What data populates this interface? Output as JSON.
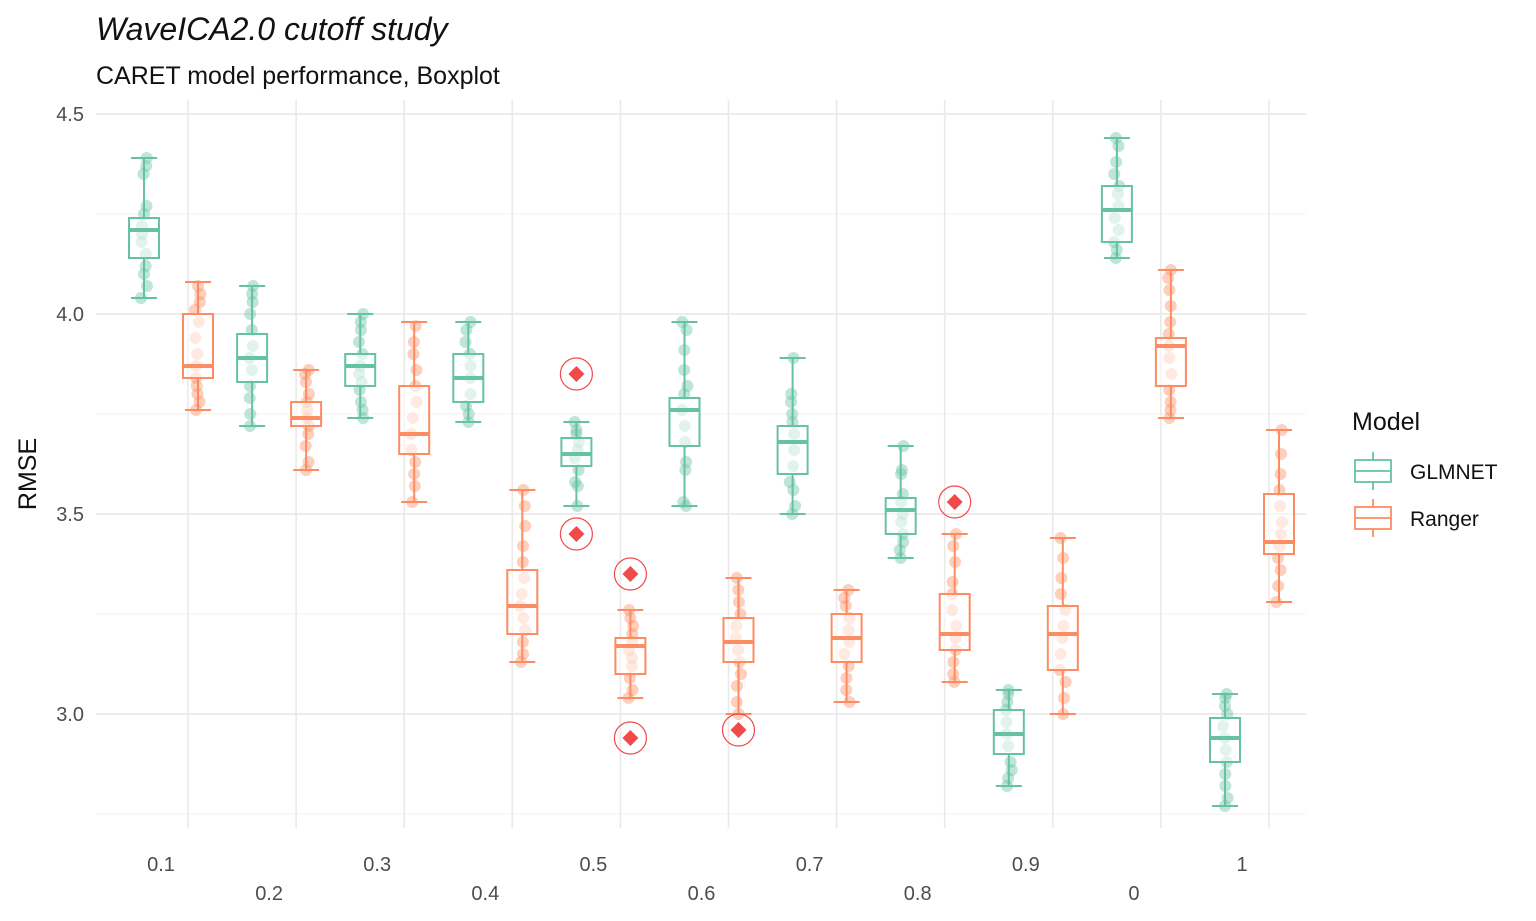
{
  "chart_data": {
    "type": "box",
    "title": "WaveICA2.0 cutoff study",
    "subtitle": "CARET model performance, Boxplot",
    "ylabel": "RMSE",
    "xlabel": "",
    "ylim": [
      2.75,
      4.5
    ],
    "yticks": [
      3.0,
      3.5,
      4.0,
      4.5
    ],
    "grid": true,
    "legend": {
      "title": "Model",
      "position": "right",
      "entries": [
        "GLMNET",
        "Ranger"
      ]
    },
    "categories": [
      "0.1",
      "0.2",
      "0.3",
      "0.4",
      "0.5",
      "0.6",
      "0.7",
      "0.8",
      "0.9",
      "0",
      "1"
    ],
    "colors": {
      "GLMNET": "#66c2a5",
      "Ranger": "#fc8d62",
      "highlight": "#f04a4a"
    },
    "series": [
      {
        "name": "GLMNET",
        "boxes": [
          {
            "category": "0.1",
            "min": 4.04,
            "q1": 4.14,
            "median": 4.21,
            "q3": 4.24,
            "max": 4.39,
            "points": [
              4.04,
              4.07,
              4.1,
              4.12,
              4.15,
              4.18,
              4.2,
              4.22,
              4.25,
              4.27,
              4.35,
              4.37,
              4.39
            ]
          },
          {
            "category": "0.2",
            "min": 3.72,
            "q1": 3.83,
            "median": 3.89,
            "q3": 3.95,
            "max": 4.07,
            "points": [
              3.72,
              3.75,
              3.79,
              3.82,
              3.86,
              3.89,
              3.92,
              3.96,
              4.0,
              4.03,
              4.05,
              4.07
            ]
          },
          {
            "category": "0.3",
            "min": 3.74,
            "q1": 3.82,
            "median": 3.87,
            "q3": 3.9,
            "max": 4.0,
            "points": [
              3.74,
              3.76,
              3.78,
              3.81,
              3.83,
              3.85,
              3.87,
              3.9,
              3.93,
              3.96,
              3.98,
              4.0
            ]
          },
          {
            "category": "0.4",
            "min": 3.73,
            "q1": 3.78,
            "median": 3.84,
            "q3": 3.9,
            "max": 3.98,
            "points": [
              3.73,
              3.75,
              3.77,
              3.8,
              3.84,
              3.87,
              3.9,
              3.93,
              3.96,
              3.98
            ]
          },
          {
            "category": "0.5",
            "min": 3.52,
            "q1": 3.62,
            "median": 3.65,
            "q3": 3.69,
            "max": 3.73,
            "points": [
              3.52,
              3.57,
              3.58,
              3.61,
              3.64,
              3.66,
              3.68,
              3.7,
              3.71,
              3.73
            ]
          },
          {
            "category": "0.6",
            "min": 3.52,
            "q1": 3.67,
            "median": 3.76,
            "q3": 3.79,
            "max": 3.98,
            "points": [
              3.52,
              3.53,
              3.61,
              3.63,
              3.68,
              3.72,
              3.76,
              3.8,
              3.82,
              3.86,
              3.91,
              3.96,
              3.98
            ]
          },
          {
            "category": "0.7",
            "min": 3.5,
            "q1": 3.6,
            "median": 3.68,
            "q3": 3.72,
            "max": 3.89,
            "points": [
              3.5,
              3.52,
              3.56,
              3.58,
              3.62,
              3.66,
              3.7,
              3.73,
              3.75,
              3.78,
              3.8,
              3.89
            ]
          },
          {
            "category": "0.8",
            "min": 3.39,
            "q1": 3.45,
            "median": 3.51,
            "q3": 3.54,
            "max": 3.67,
            "points": [
              3.39,
              3.41,
              3.43,
              3.45,
              3.48,
              3.5,
              3.53,
              3.55,
              3.6,
              3.61,
              3.67
            ]
          },
          {
            "category": "0.9",
            "min": 2.82,
            "q1": 2.9,
            "median": 2.95,
            "q3": 3.01,
            "max": 3.06,
            "points": [
              2.82,
              2.84,
              2.86,
              2.88,
              2.92,
              2.95,
              2.98,
              3.01,
              3.03,
              3.05,
              3.06
            ]
          },
          {
            "category": "0",
            "min": 4.14,
            "q1": 4.18,
            "median": 4.26,
            "q3": 4.32,
            "max": 4.44,
            "points": [
              4.14,
              4.16,
              4.18,
              4.21,
              4.24,
              4.27,
              4.3,
              4.32,
              4.35,
              4.38,
              4.42,
              4.44
            ]
          },
          {
            "category": "1",
            "min": 2.77,
            "q1": 2.88,
            "median": 2.94,
            "q3": 2.99,
            "max": 3.05,
            "points": [
              2.77,
              2.79,
              2.82,
              2.85,
              2.88,
              2.91,
              2.94,
              2.97,
              3.0,
              3.02,
              3.04,
              3.05
            ]
          }
        ],
        "outliers": [
          {
            "category": "0.5",
            "value": 3.85
          },
          {
            "category": "0.5",
            "value": 3.45
          }
        ]
      },
      {
        "name": "Ranger",
        "boxes": [
          {
            "category": "0.1",
            "min": 3.76,
            "q1": 3.84,
            "median": 3.87,
            "q3": 4.0,
            "max": 4.08,
            "points": [
              3.76,
              3.78,
              3.8,
              3.82,
              3.84,
              3.87,
              3.9,
              3.94,
              3.98,
              4.01,
              4.03,
              4.05,
              4.07
            ]
          },
          {
            "category": "0.2",
            "min": 3.61,
            "q1": 3.72,
            "median": 3.74,
            "q3": 3.78,
            "max": 3.86,
            "points": [
              3.61,
              3.63,
              3.67,
              3.7,
              3.72,
              3.74,
              3.76,
              3.78,
              3.8,
              3.83,
              3.85,
              3.86
            ]
          },
          {
            "category": "0.3",
            "min": 3.53,
            "q1": 3.65,
            "median": 3.7,
            "q3": 3.82,
            "max": 3.98,
            "points": [
              3.53,
              3.57,
              3.6,
              3.63,
              3.66,
              3.7,
              3.74,
              3.78,
              3.82,
              3.86,
              3.9,
              3.93,
              3.97
            ]
          },
          {
            "category": "0.4",
            "min": 3.13,
            "q1": 3.2,
            "median": 3.27,
            "q3": 3.36,
            "max": 3.56,
            "points": [
              3.13,
              3.15,
              3.18,
              3.21,
              3.24,
              3.27,
              3.3,
              3.34,
              3.38,
              3.42,
              3.47,
              3.52,
              3.56
            ]
          },
          {
            "category": "0.5",
            "min": 3.04,
            "q1": 3.1,
            "median": 3.17,
            "q3": 3.19,
            "max": 3.26,
            "points": [
              3.04,
              3.06,
              3.09,
              3.12,
              3.14,
              3.16,
              3.18,
              3.2,
              3.22,
              3.24,
              3.26
            ]
          },
          {
            "category": "0.6",
            "min": 3.0,
            "q1": 3.13,
            "median": 3.18,
            "q3": 3.24,
            "max": 3.34,
            "points": [
              3.0,
              3.03,
              3.07,
              3.1,
              3.13,
              3.16,
              3.19,
              3.22,
              3.25,
              3.28,
              3.31,
              3.34
            ]
          },
          {
            "category": "0.7",
            "min": 3.03,
            "q1": 3.13,
            "median": 3.19,
            "q3": 3.25,
            "max": 3.31,
            "points": [
              3.03,
              3.06,
              3.09,
              3.12,
              3.15,
              3.18,
              3.21,
              3.24,
              3.27,
              3.29,
              3.31
            ]
          },
          {
            "category": "0.8",
            "min": 3.08,
            "q1": 3.16,
            "median": 3.2,
            "q3": 3.3,
            "max": 3.45,
            "points": [
              3.08,
              3.1,
              3.13,
              3.16,
              3.19,
              3.22,
              3.26,
              3.3,
              3.33,
              3.38,
              3.42,
              3.45
            ]
          },
          {
            "category": "0.9",
            "min": 3.0,
            "q1": 3.11,
            "median": 3.2,
            "q3": 3.27,
            "max": 3.44,
            "points": [
              3.0,
              3.04,
              3.08,
              3.11,
              3.15,
              3.19,
              3.22,
              3.26,
              3.3,
              3.34,
              3.39,
              3.44
            ]
          },
          {
            "category": "0",
            "min": 3.74,
            "q1": 3.82,
            "median": 3.92,
            "q3": 3.94,
            "max": 4.11,
            "points": [
              3.74,
              3.76,
              3.78,
              3.81,
              3.85,
              3.89,
              3.92,
              3.95,
              3.98,
              4.02,
              4.06,
              4.09,
              4.11
            ]
          },
          {
            "category": "1",
            "min": 3.28,
            "q1": 3.4,
            "median": 3.43,
            "q3": 3.55,
            "max": 3.71,
            "points": [
              3.28,
              3.32,
              3.36,
              3.39,
              3.42,
              3.45,
              3.48,
              3.52,
              3.56,
              3.6,
              3.65,
              3.71
            ]
          }
        ],
        "outliers": [
          {
            "category": "0.5",
            "value": 3.35
          },
          {
            "category": "0.5",
            "value": 2.94
          },
          {
            "category": "0.6",
            "value": 2.96
          },
          {
            "category": "0.8",
            "value": 3.53
          }
        ]
      }
    ]
  }
}
